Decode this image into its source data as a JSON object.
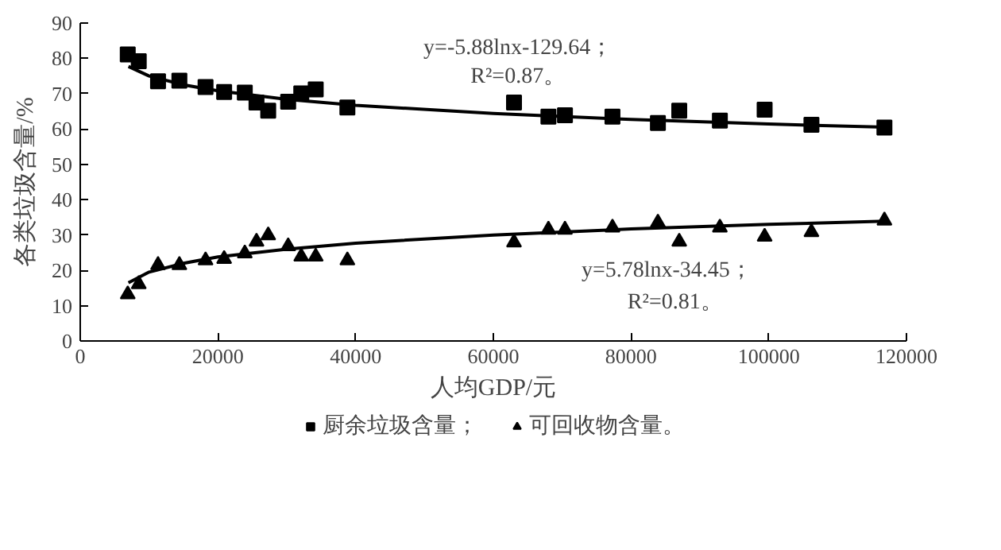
{
  "chart_data": {
    "type": "scatter",
    "xlabel": "人均GDP/元",
    "ylabel": "各类垃圾含量/%",
    "xlim": [
      0,
      120000
    ],
    "xticks": [
      0,
      20000,
      40000,
      60000,
      80000,
      100000,
      120000
    ],
    "ylim": [
      0,
      90
    ],
    "yticks": [
      0,
      10,
      20,
      30,
      40,
      50,
      60,
      70,
      80,
      90
    ],
    "grid": false,
    "legend": "bottom",
    "series": [
      {
        "name": "厨余垃圾含量；",
        "marker": "square",
        "color": "#000000",
        "x": [
          6900,
          8500,
          11300,
          14400,
          18200,
          20900,
          23900,
          25600,
          27300,
          30200,
          32100,
          34200,
          38800,
          63000,
          68000,
          70400,
          77300,
          83900,
          87000,
          92900,
          99400,
          106200,
          116800
        ],
        "values": [
          81.1,
          79.2,
          73.5,
          73.7,
          71.9,
          70.5,
          70.3,
          67.5,
          65.2,
          67.7,
          70.1,
          71.2,
          66.1,
          67.5,
          63.5,
          63.9,
          63.5,
          61.7,
          65.2,
          62.4,
          65.5,
          61.2,
          60.4
        ]
      },
      {
        "name": "可回收物含量。",
        "marker": "triangle",
        "color": "#000000",
        "x": [
          6900,
          8500,
          11300,
          14400,
          18200,
          20900,
          23900,
          25600,
          27300,
          30200,
          32100,
          34200,
          38800,
          63000,
          68000,
          70400,
          77300,
          83900,
          87000,
          92900,
          99400,
          106200,
          116800
        ],
        "values": [
          13.2,
          16.1,
          21.5,
          21.5,
          22.8,
          23.2,
          24.8,
          28.1,
          29.9,
          26.8,
          23.9,
          23.9,
          22.8,
          27.9,
          31.5,
          31.5,
          32.1,
          33.5,
          28.1,
          32.1,
          29.5,
          30.8,
          34.1
        ]
      },
      {
        "type": "line",
        "marker": "none",
        "line_style": "solid",
        "color": "#000000",
        "x": [
          7000,
          10000,
          15000,
          20000,
          30000,
          40000,
          60000,
          80000,
          100000,
          117000
        ],
        "values": [
          77.7,
          75,
          72.5,
          70.8,
          68.4,
          66.7,
          64.4,
          62.7,
          61.4,
          60.5
        ]
      },
      {
        "type": "line",
        "marker": "none",
        "line_style": "solid",
        "color": "#000000",
        "x": [
          7000,
          10000,
          15000,
          20000,
          30000,
          40000,
          60000,
          80000,
          100000,
          117000
        ],
        "values": [
          16.5,
          19.5,
          22,
          23.8,
          26,
          27.7,
          30,
          31.7,
          33,
          33.9
        ]
      }
    ],
    "annotations": [
      "y=-5.88lnx-129.64；",
      "R²=0.87。",
      "y=5.78lnx-34.45；",
      "R²=0.81。"
    ]
  }
}
